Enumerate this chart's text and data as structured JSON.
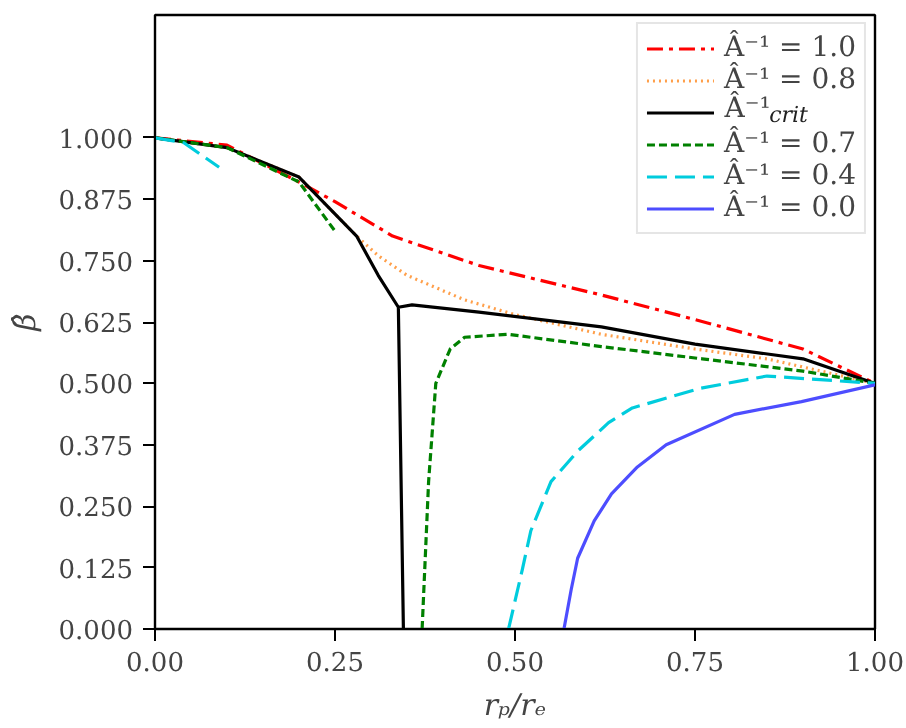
{
  "chart_data": {
    "type": "line",
    "xlabel": "rₚ/rₑ",
    "ylabel": "β̂",
    "xlim": [
      0,
      1
    ],
    "ylim": [
      0,
      1.25
    ],
    "xticks": [
      {
        "value": 0,
        "label": "0.00"
      },
      {
        "value": 0.25,
        "label": "0.25"
      },
      {
        "value": 0.5,
        "label": "0.50"
      },
      {
        "value": 0.75,
        "label": "0.75"
      },
      {
        "value": 1,
        "label": "1.00"
      }
    ],
    "yticks": [
      {
        "value": 0,
        "label": "0.000"
      },
      {
        "value": 0.125,
        "label": "0.125"
      },
      {
        "value": 0.25,
        "label": "0.250"
      },
      {
        "value": 0.375,
        "label": "0.375"
      },
      {
        "value": 0.5,
        "label": "0.500"
      },
      {
        "value": 0.625,
        "label": "0.625"
      },
      {
        "value": 0.75,
        "label": "0.750"
      },
      {
        "value": 0.875,
        "label": "0.875"
      },
      {
        "value": 1,
        "label": "1.000"
      }
    ],
    "grid": false,
    "legend": "top right",
    "marker": "none",
    "series": [
      {
        "name": "Â⁻¹ = 1.0",
        "color": "#ff0000",
        "line_style": "dashdot",
        "x": [
          0,
          0.1,
          0.2,
          0.25,
          0.33,
          0.45,
          0.62,
          0.75,
          0.9,
          1.0
        ],
        "values": [
          1.0,
          0.985,
          0.91,
          0.87,
          0.8,
          0.74,
          0.68,
          0.63,
          0.57,
          0.5
        ]
      },
      {
        "name": "Â⁻¹ = 0.8",
        "color": "#ff9f4a",
        "line_style": "dotted",
        "x": [
          0,
          0.1,
          0.2,
          0.28,
          0.31,
          0.35,
          0.43,
          0.5,
          0.62,
          0.75,
          0.85,
          1.0
        ],
        "values": [
          1.0,
          0.98,
          0.92,
          0.8,
          0.76,
          0.72,
          0.67,
          0.64,
          0.6,
          0.57,
          0.55,
          0.5
        ]
      },
      {
        "name": "Â⁻¹$_{crit}$",
        "color": "#000000",
        "line_style": "solid",
        "x": [
          0,
          0.1,
          0.2,
          0.28,
          0.31,
          0.338,
          0.345,
          null,
          0.338,
          0.357,
          0.45,
          0.62,
          0.75,
          0.9,
          1.0
        ],
        "values": [
          1.0,
          0.98,
          0.92,
          0.8,
          0.72,
          0.655,
          0.0,
          null,
          0.655,
          0.66,
          0.645,
          0.615,
          0.58,
          0.55,
          0.5
        ]
      },
      {
        "name": "Â⁻¹ = 0.7",
        "color": "#008000",
        "line_style": "dashed",
        "x": [
          0,
          0.1,
          0.2,
          0.25,
          null,
          0.371,
          0.38,
          0.39,
          0.41,
          0.43,
          0.49,
          0.62,
          0.76,
          0.9,
          1.0
        ],
        "values": [
          1.0,
          0.98,
          0.91,
          0.81,
          null,
          0.0,
          0.3,
          0.5,
          0.57,
          0.594,
          0.6,
          0.575,
          0.55,
          0.525,
          0.5
        ]
      },
      {
        "name": "Â⁻¹ = 0.4",
        "color": "#00ccdd",
        "line_style": "longdash",
        "x": [
          0,
          0.04,
          0.089,
          null,
          0.491,
          0.51,
          0.522,
          0.55,
          0.587,
          0.63,
          0.663,
          0.757,
          0.85,
          1.0
        ],
        "values": [
          1.0,
          0.99,
          0.94,
          null,
          0.0,
          0.12,
          0.2,
          0.3,
          0.362,
          0.42,
          0.45,
          0.49,
          0.515,
          0.5
        ]
      },
      {
        "name": "Â⁻¹ = 0.0",
        "color": "#4d4dff",
        "line_style": "solid",
        "x": [
          0.568,
          0.578,
          0.587,
          0.61,
          0.634,
          0.67,
          0.71,
          0.805,
          0.898,
          1.0
        ],
        "values": [
          0.0,
          0.08,
          0.144,
          0.22,
          0.275,
          0.33,
          0.375,
          0.437,
          0.463,
          0.497
        ]
      }
    ]
  }
}
